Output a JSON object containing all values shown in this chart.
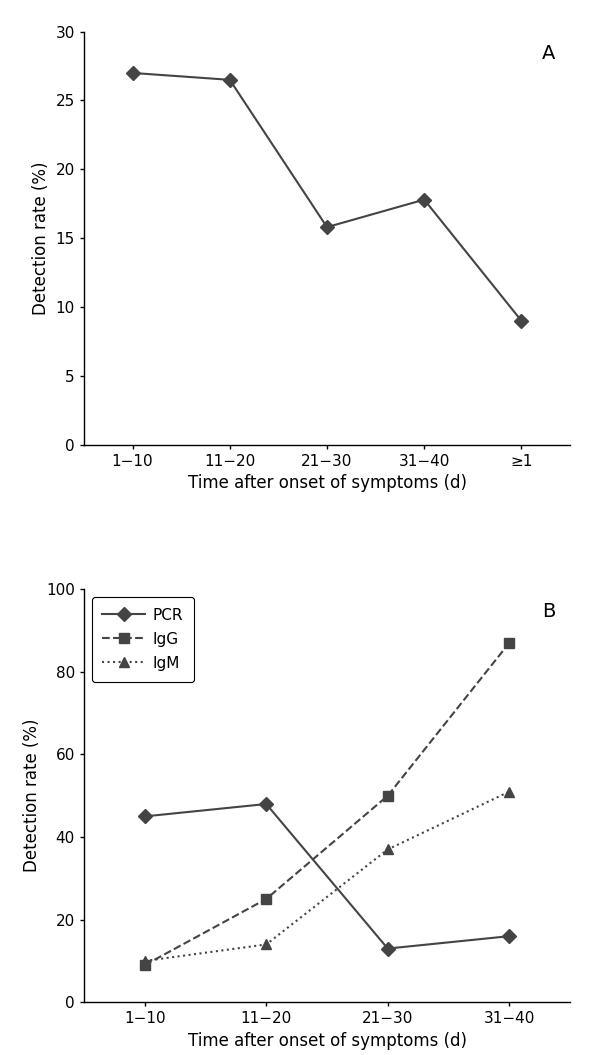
{
  "panel_A": {
    "x": [
      1,
      2,
      3,
      4,
      5
    ],
    "y": [
      27.0,
      26.5,
      15.8,
      17.8,
      9.0
    ],
    "xtick_labels": [
      "1−10",
      "11−20",
      "21−30",
      "31−40",
      "≥1"
    ],
    "ylabel": "Detection rate (%)",
    "xlabel": "Time after onset of symptoms (d)",
    "ylim": [
      0,
      30
    ],
    "yticks": [
      0,
      5,
      10,
      15,
      20,
      25,
      30
    ],
    "label": "A",
    "color": "#444444",
    "marker": "D",
    "markersize": 7,
    "linewidth": 1.5
  },
  "panel_B": {
    "PCR": {
      "x": [
        1,
        2,
        3,
        4
      ],
      "y": [
        45,
        48,
        13,
        16
      ],
      "linestyle": "-",
      "marker": "D",
      "label": "PCR",
      "color": "#444444",
      "markersize": 7,
      "linewidth": 1.5
    },
    "IgG": {
      "x": [
        1,
        2,
        3,
        4
      ],
      "y": [
        9,
        25,
        50,
        87
      ],
      "linestyle": "--",
      "marker": "s",
      "label": "IgG",
      "color": "#444444",
      "markersize": 7,
      "linewidth": 1.5
    },
    "IgM": {
      "x": [
        1,
        2,
        3,
        4
      ],
      "y": [
        10,
        14,
        37,
        51
      ],
      "linestyle": ":",
      "marker": "^",
      "label": "IgM",
      "color": "#444444",
      "markersize": 7,
      "linewidth": 1.5
    },
    "xtick_labels": [
      "1−10",
      "11−20",
      "21−30",
      "31−40"
    ],
    "ylabel": "Detection rate (%)",
    "xlabel": "Time after onset of symptoms (d)",
    "ylim": [
      0,
      100
    ],
    "yticks": [
      0,
      20,
      40,
      60,
      80,
      100
    ],
    "label": "B"
  },
  "background_color": "#ffffff",
  "font_color": "#000000",
  "tick_fontsize": 11,
  "label_fontsize": 12,
  "panel_label_fontsize": 14
}
